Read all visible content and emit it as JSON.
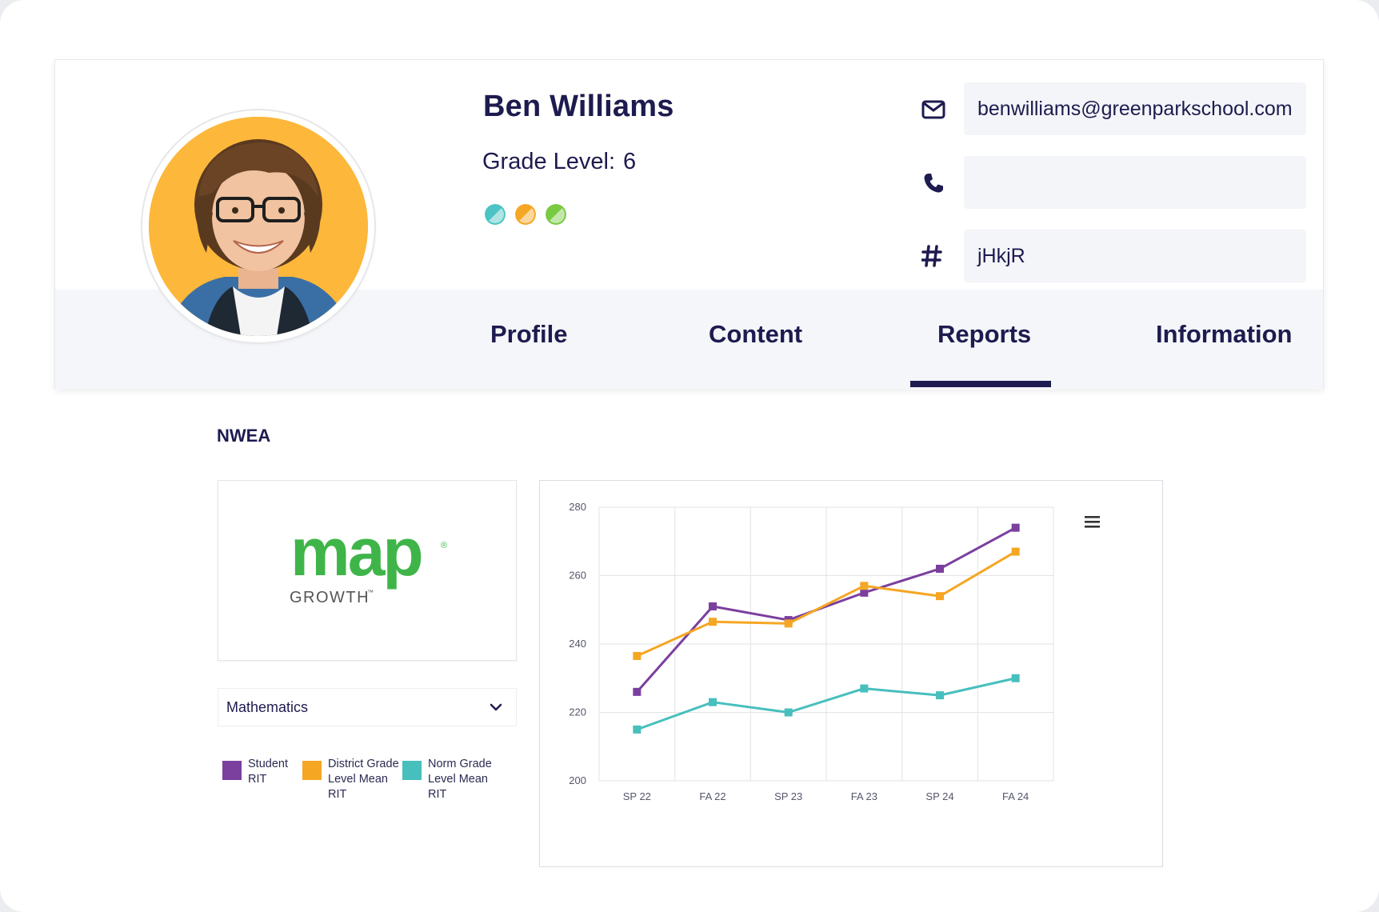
{
  "student": {
    "name": "Ben Williams",
    "grade_label": "Grade Level:",
    "grade_value": "6",
    "badge_colors": [
      "#4cc3c4",
      "#f5a623",
      "#7ac943"
    ]
  },
  "contact": {
    "email": "benwilliams@greenparkschool.com",
    "phone": "",
    "id": "jHkjR",
    "icons": [
      "envelope-icon",
      "phone-icon",
      "hash-icon"
    ]
  },
  "tabs": [
    {
      "label": "Profile",
      "active": false
    },
    {
      "label": "Content",
      "active": false
    },
    {
      "label": "Reports",
      "active": true
    },
    {
      "label": "Information",
      "active": false
    }
  ],
  "reports": {
    "section_title": "NWEA",
    "logo": {
      "wordmark": "map",
      "sub": "GROWTH",
      "tm": "™",
      "reg": "®",
      "color": "#3fb549",
      "sub_color": "#555555"
    },
    "subject_select": {
      "value": "Mathematics"
    },
    "legend": [
      {
        "label": "Student RIT",
        "color": "#7b3f9e"
      },
      {
        "label": "District Grade Level Mean RIT",
        "color": "#f5a623"
      },
      {
        "label": "Norm Grade Level Mean RIT",
        "color": "#47bfbd"
      }
    ]
  },
  "chart_data": {
    "type": "line",
    "x": [
      "SP 22",
      "FA 22",
      "SP 23",
      "FA 23",
      "SP 24",
      "FA 24"
    ],
    "ylim": [
      200,
      280
    ],
    "yticks": [
      200,
      220,
      240,
      260,
      280
    ],
    "grid": true,
    "series": [
      {
        "name": "Student RIT",
        "color": "#7b3f9e",
        "values": [
          226,
          251,
          247,
          255,
          262,
          274
        ]
      },
      {
        "name": "District Grade Level Mean RIT",
        "color": "#f5a623",
        "values": [
          236.5,
          246.5,
          246,
          257,
          254,
          267
        ]
      },
      {
        "name": "Norm Grade Level Mean RIT",
        "color": "#47bfbd",
        "values": [
          215,
          223,
          220,
          227,
          225,
          230
        ]
      }
    ]
  }
}
